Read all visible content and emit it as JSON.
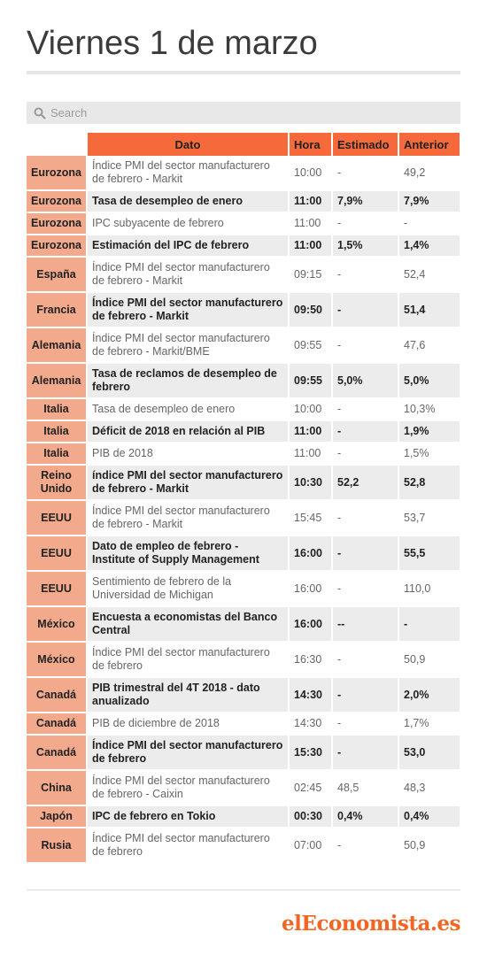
{
  "title": "Viernes 1 de marzo",
  "search": {
    "placeholder": "Search",
    "icon": "search-icon"
  },
  "columns": {
    "dato": "Dato",
    "hora": "Hora",
    "estimado": "Estimado",
    "anterior": "Anterior"
  },
  "rows": [
    {
      "country": "Eurozona",
      "dato": "Índice PMI del sector manufacturero de febrero - Markit",
      "hora": "10:00",
      "estimado": "-",
      "anterior": "49,2",
      "bold": false
    },
    {
      "country": "Eurozona",
      "dato": "Tasa de desempleo de enero",
      "hora": "11:00",
      "estimado": "7,9%",
      "anterior": "7,9%",
      "bold": true
    },
    {
      "country": "Eurozona",
      "dato": "IPC subyacente de febrero",
      "hora": "11:00",
      "estimado": "-",
      "anterior": "-",
      "bold": false
    },
    {
      "country": "Eurozona",
      "dato": "Estimación del IPC de febrero",
      "hora": "11:00",
      "estimado": "1,5%",
      "anterior": "1,4%",
      "bold": true
    },
    {
      "country": "España",
      "dato": "Índice PMI del sector manufacturero de febrero - Markit",
      "hora": "09:15",
      "estimado": "-",
      "anterior": "52,4",
      "bold": false
    },
    {
      "country": "Francia",
      "dato": "Índice PMI del sector manufacturero de febrero - Markit",
      "hora": "09:50",
      "estimado": "-",
      "anterior": "51,4",
      "bold": true
    },
    {
      "country": "Alemania",
      "dato": "Índice PMI del sector manufacturero de febrero - Markit/BME",
      "hora": "09:55",
      "estimado": "-",
      "anterior": "47,6",
      "bold": false
    },
    {
      "country": "Alemania",
      "dato": "Tasa de reclamos de desempleo de febrero",
      "hora": "09:55",
      "estimado": "5,0%",
      "anterior": "5,0%",
      "bold": true
    },
    {
      "country": "Italia",
      "dato": "Tasa de desempleo de enero",
      "hora": "10:00",
      "estimado": "-",
      "anterior": "10,3%",
      "bold": false
    },
    {
      "country": "Italia",
      "dato": "Déficit de 2018 en relación al PIB",
      "hora": "11:00",
      "estimado": "-",
      "anterior": "1,9%",
      "bold": true
    },
    {
      "country": "Italia",
      "dato": "PIB de 2018",
      "hora": "11:00",
      "estimado": "-",
      "anterior": "1,5%",
      "bold": false
    },
    {
      "country": "Reino Unido",
      "dato": "índice PMI del sector manufacturero de febrero - Markit",
      "hora": "10:30",
      "estimado": "52,2",
      "anterior": "52,8",
      "bold": true
    },
    {
      "country": "EEUU",
      "dato": "Índice PMI del sector manufacturero de febrero - Markit",
      "hora": "15:45",
      "estimado": "-",
      "anterior": "53,7",
      "bold": false
    },
    {
      "country": "EEUU",
      "dato": "Dato de empleo de febrero - Institute of Supply Management",
      "hora": "16:00",
      "estimado": "-",
      "anterior": "55,5",
      "bold": true
    },
    {
      "country": "EEUU",
      "dato": "Sentimiento de febrero de la Universidad de Michigan",
      "hora": "16:00",
      "estimado": "-",
      "anterior": "110,0",
      "bold": false
    },
    {
      "country": "México",
      "dato": "Encuesta a economistas del Banco Central",
      "hora": "16:00",
      "estimado": "--",
      "anterior": "-",
      "bold": true
    },
    {
      "country": "México",
      "dato": "Índice PMI del sector manufacturero de febrero",
      "hora": "16:30",
      "estimado": "-",
      "anterior": "50,9",
      "bold": false
    },
    {
      "country": "Canadá",
      "dato": "PIB trimestral del 4T 2018 - dato anualizado",
      "hora": "14:30",
      "estimado": "-",
      "anterior": "2,0%",
      "bold": true
    },
    {
      "country": "Canadá",
      "dato": "PIB de diciembre de 2018",
      "hora": "14:30",
      "estimado": "-",
      "anterior": "1,7%",
      "bold": false
    },
    {
      "country": "Canadá",
      "dato": "Índice PMI del sector manufacturero de febrero",
      "hora": "15:30",
      "estimado": "-",
      "anterior": "53,0",
      "bold": true
    },
    {
      "country": "China",
      "dato": "Índice PMI del sector manufacturero de febrero - Caixin",
      "hora": "02:45",
      "estimado": "48,5",
      "anterior": "48,3",
      "bold": false
    },
    {
      "country": "Japón",
      "dato": "IPC de febrero en Tokio",
      "hora": "00:30",
      "estimado": "0,4%",
      "anterior": "0,4%",
      "bold": true
    },
    {
      "country": "Rusia",
      "dato": "Índice PMI del sector manufacturero de febrero",
      "hora": "07:00",
      "estimado": "-",
      "anterior": "50,9",
      "bold": false
    }
  ],
  "logo": "elEconomista.es",
  "colors": {
    "header": "#f5693a",
    "country_cell": "#f2a98c",
    "stripe": "#ececec",
    "logo": "#f26522"
  }
}
